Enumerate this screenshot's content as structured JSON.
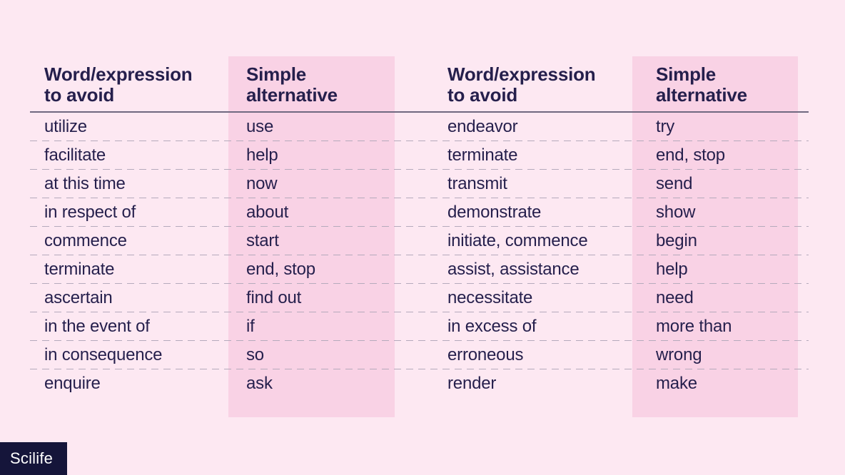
{
  "colors": {
    "background": "#fde8f2",
    "column_highlight": "#f9d2e5",
    "text": "#251f4c",
    "header_rule": "#6f6880",
    "row_divider_dash": "#b5aabc",
    "logo_background": "#15153a",
    "logo_text": "#ffffff"
  },
  "tables": [
    {
      "headers": [
        {
          "line1": "Word/expression",
          "line2": "to avoid"
        },
        {
          "line1": "Simple",
          "line2": "alternative"
        }
      ],
      "rows": [
        {
          "avoid": "utilize",
          "alternative": "use"
        },
        {
          "avoid": "facilitate",
          "alternative": "help"
        },
        {
          "avoid": "at this time",
          "alternative": "now"
        },
        {
          "avoid": "in respect of",
          "alternative": "about"
        },
        {
          "avoid": "commence",
          "alternative": "start"
        },
        {
          "avoid": "terminate",
          "alternative": "end, stop"
        },
        {
          "avoid": "ascertain",
          "alternative": "find out"
        },
        {
          "avoid": "in the event of",
          "alternative": "if"
        },
        {
          "avoid": "in consequence",
          "alternative": "so"
        },
        {
          "avoid": "enquire",
          "alternative": "ask"
        }
      ]
    },
    {
      "headers": [
        {
          "line1": "Word/expression",
          "line2": "to avoid"
        },
        {
          "line1": "Simple",
          "line2": "alternative"
        }
      ],
      "rows": [
        {
          "avoid": "endeavor",
          "alternative": "try"
        },
        {
          "avoid": "terminate",
          "alternative": "end, stop"
        },
        {
          "avoid": "transmit",
          "alternative": "send"
        },
        {
          "avoid": "demonstrate",
          "alternative": "show"
        },
        {
          "avoid": "initiate, commence",
          "alternative": "begin"
        },
        {
          "avoid": "assist, assistance",
          "alternative": "help"
        },
        {
          "avoid": "necessitate",
          "alternative": "need"
        },
        {
          "avoid": "in excess of",
          "alternative": "more than"
        },
        {
          "avoid": "erroneous",
          "alternative": "wrong"
        },
        {
          "avoid": "render",
          "alternative": "make"
        }
      ]
    }
  ],
  "logo": {
    "label": "Scilife"
  }
}
